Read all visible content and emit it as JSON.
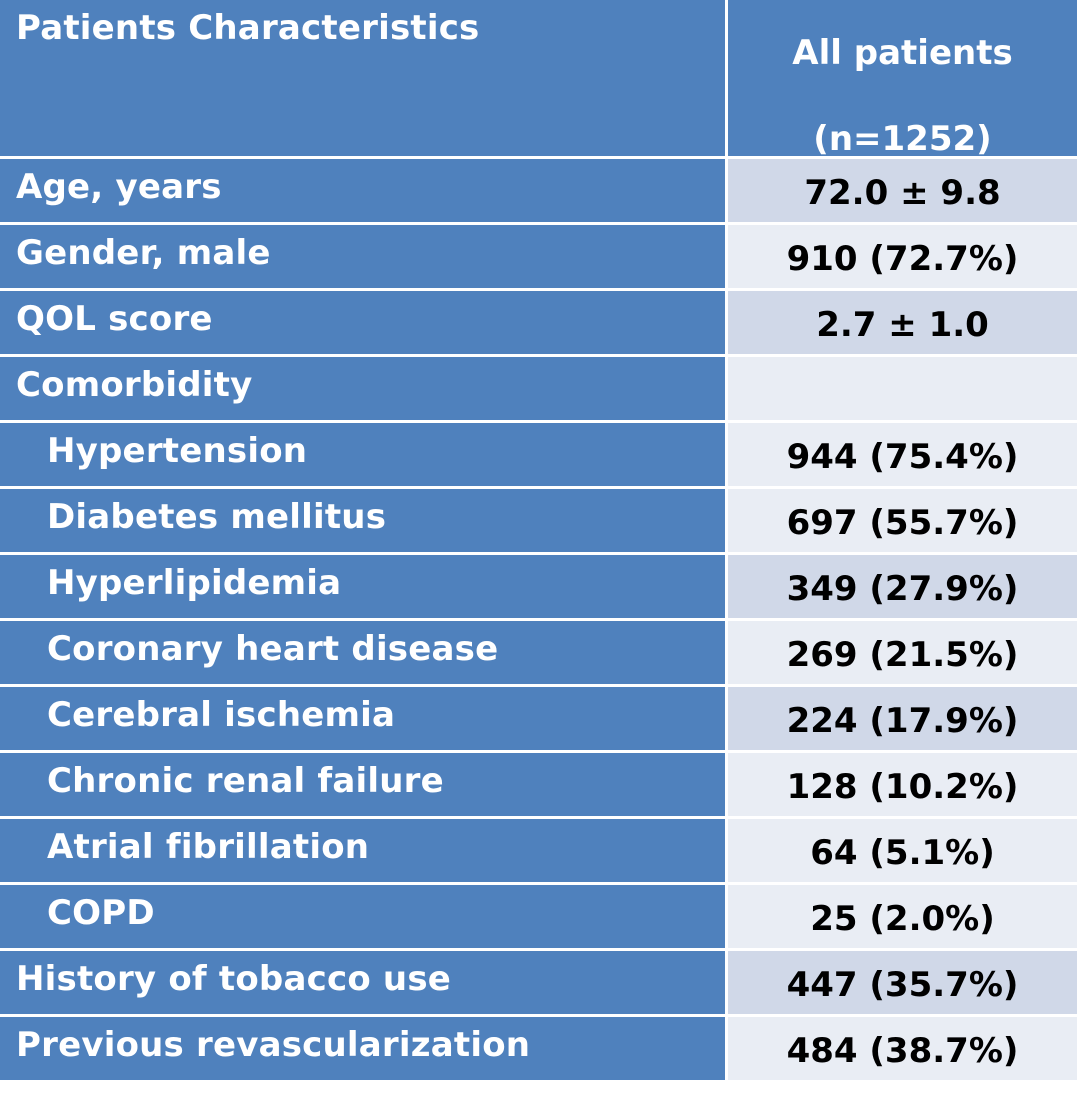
{
  "header": {
    "col1": "Patients Characteristics",
    "col2_line1": "All patients",
    "col2_line2": "(n=1252)"
  },
  "rows": [
    {
      "label": "Age, years",
      "value": "72.0 ± 9.8",
      "indent": false,
      "shade": "dark"
    },
    {
      "label": "Gender, male",
      "value": "910 (72.7%)",
      "indent": false,
      "shade": "light"
    },
    {
      "label": "QOL score",
      "value": "2.7 ± 1.0",
      "indent": false,
      "shade": "dark"
    },
    {
      "label": "Comorbidity",
      "value": "",
      "indent": false,
      "shade": "light"
    },
    {
      "label": "Hypertension",
      "value": "944 (75.4%)",
      "indent": true,
      "shade": "light"
    },
    {
      "label": "Diabetes mellitus",
      "value": "697 (55.7%)",
      "indent": true,
      "shade": "light"
    },
    {
      "label": "Hyperlipidemia",
      "value": "349 (27.9%)",
      "indent": true,
      "shade": "dark"
    },
    {
      "label": "Coronary heart disease",
      "value": "269 (21.5%)",
      "indent": true,
      "shade": "light"
    },
    {
      "label": "Cerebral ischemia",
      "value": "224 (17.9%)",
      "indent": true,
      "shade": "dark"
    },
    {
      "label": "Chronic renal failure",
      "value": "128 (10.2%)",
      "indent": true,
      "shade": "light"
    },
    {
      "label": "Atrial fibrillation",
      "value": "64 (5.1%)",
      "indent": true,
      "shade": "light"
    },
    {
      "label": "COPD",
      "value": "25 (2.0%)",
      "indent": true,
      "shade": "light"
    },
    {
      "label": "History of tobacco use",
      "value": "447 (35.7%)",
      "indent": false,
      "shade": "dark"
    },
    {
      "label": "Previous revascularization",
      "value": "484 (38.7%)",
      "indent": false,
      "shade": "light"
    }
  ],
  "colors": {
    "header_bg": "#4f81bd",
    "label_bg": "#4f81bd",
    "value_light": "#e9edf4",
    "value_dark": "#d0d8e8"
  }
}
